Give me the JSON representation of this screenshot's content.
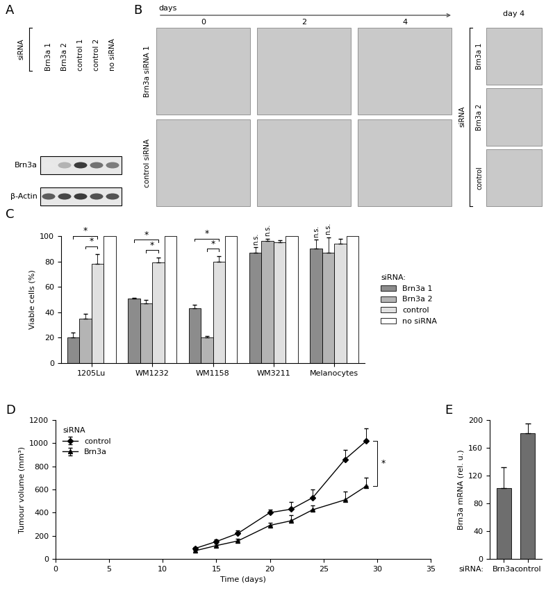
{
  "blot": {
    "title": "A",
    "group_label": "siRNA",
    "lanes": [
      "Brn3a 1",
      "Brn3a 2",
      "control 1",
      "control 2",
      "no siRNA"
    ],
    "rows": [
      {
        "label": "Brn3a",
        "intensities": [
          0.1,
          0.35,
          0.9,
          0.65,
          0.6
        ]
      },
      {
        "label": "β-Actin",
        "intensities": [
          0.75,
          0.85,
          0.9,
          0.8,
          0.8
        ]
      }
    ]
  },
  "micrographs": {
    "title": "B",
    "axis_label": "days",
    "columns": [
      "0",
      "2",
      "4"
    ],
    "rows": [
      "Brn3a siRNA 1",
      "control siRNA"
    ],
    "inset": {
      "label": "siRNA",
      "title": "day 4",
      "rows": [
        "Brn3a 1",
        "Brn3a 2",
        "control"
      ]
    }
  },
  "chart_data": [
    {
      "type": "bar",
      "title": "C",
      "ylabel": "Viable cells (%)",
      "categories": [
        "1205Lu",
        "WM1232",
        "WM1158",
        "WM3211",
        "Melanocytes"
      ],
      "series": [
        {
          "name": "Brn3a 1",
          "color": "#8c8c8c",
          "values": [
            20,
            51,
            43,
            87,
            90
          ],
          "errors": [
            4,
            0.5,
            3,
            4,
            7
          ]
        },
        {
          "name": "Brn3a 2",
          "color": "#b4b4b4",
          "values": [
            35,
            47,
            20,
            96,
            87
          ],
          "errors": [
            4,
            3,
            1.5,
            2,
            12
          ]
        },
        {
          "name": "control",
          "color": "#e0e0e0",
          "values": [
            78,
            79,
            80,
            95,
            94
          ],
          "errors": [
            8,
            4,
            4,
            1.5,
            4
          ]
        },
        {
          "name": "no siRNA",
          "color": "#ffffff",
          "values": [
            100,
            100,
            100,
            100,
            100
          ],
          "errors": [
            0,
            0,
            0,
            0,
            0
          ]
        }
      ],
      "ylim": [
        0,
        100
      ],
      "yticks": [
        0,
        20,
        40,
        60,
        80,
        100
      ],
      "grid": false,
      "legend": "right",
      "legend_title": "siRNA:",
      "annotations": [
        {
          "text": "*",
          "category": "1205Lu",
          "from": "Brn3a 1",
          "to": "control"
        },
        {
          "text": "*",
          "category": "1205Lu",
          "from": "Brn3a 2",
          "to": "control"
        },
        {
          "text": "*",
          "category": "WM1232",
          "from": "Brn3a 1",
          "to": "control"
        },
        {
          "text": "*",
          "category": "WM1232",
          "from": "Brn3a 2",
          "to": "control"
        },
        {
          "text": "*",
          "category": "WM1158",
          "from": "Brn3a 1",
          "to": "control"
        },
        {
          "text": "*",
          "category": "WM1158",
          "from": "Brn3a 2",
          "to": "control"
        },
        {
          "text": "n.s.",
          "category": "WM3211",
          "series": "Brn3a 1"
        },
        {
          "text": "n.s.",
          "category": "WM3211",
          "series": "Brn3a 2"
        },
        {
          "text": "n.s.",
          "category": "Melanocytes",
          "series": "Brn3a 1"
        },
        {
          "text": "n.s.",
          "category": "Melanocytes",
          "series": "Brn3a 2"
        }
      ]
    },
    {
      "type": "line",
      "title": "D",
      "xlabel": "Time (days)",
      "ylabel": "Tumour volume (mm³)",
      "x": [
        13,
        15,
        17,
        20,
        22,
        24,
        27,
        29
      ],
      "series": [
        {
          "name": "control",
          "color": "#000000",
          "marker": "diamond",
          "values": [
            90,
            150,
            220,
            400,
            430,
            530,
            860,
            1020
          ],
          "errors": [
            15,
            20,
            25,
            25,
            60,
            70,
            80,
            110
          ]
        },
        {
          "name": "Brn3a",
          "color": "#000000",
          "marker": "triangle",
          "values": [
            70,
            115,
            155,
            290,
            330,
            425,
            510,
            630
          ],
          "errors": [
            10,
            15,
            20,
            20,
            50,
            40,
            70,
            70
          ]
        }
      ],
      "xlim": [
        0,
        35
      ],
      "xticks": [
        0,
        5,
        10,
        15,
        20,
        25,
        30,
        35
      ],
      "ylim": [
        0,
        1200
      ],
      "yticks": [
        0,
        200,
        400,
        600,
        800,
        1000,
        1200
      ],
      "grid": false,
      "legend": "upper left",
      "legend_title": "siRNA",
      "annotations": [
        {
          "text": "*",
          "from": "control",
          "to": "Brn3a"
        }
      ]
    },
    {
      "type": "bar",
      "title": "E",
      "ylabel": "Brn3a mRNA (rel. u.)",
      "xlabel": "siRNA:",
      "categories": [
        "Brn3a",
        "control"
      ],
      "values": [
        102,
        181
      ],
      "errors": [
        30,
        14
      ],
      "color": "#6e6e6e",
      "ylim": [
        0,
        200
      ],
      "yticks": [
        0,
        40,
        80,
        120,
        160,
        200
      ],
      "grid": false
    }
  ]
}
